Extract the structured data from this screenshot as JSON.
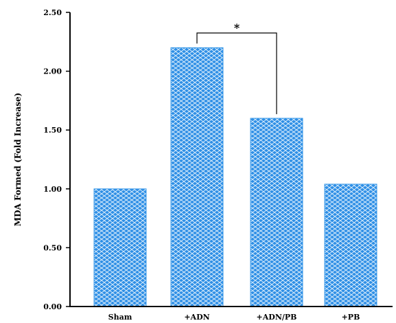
{
  "chart_data": {
    "type": "bar",
    "title": "",
    "xlabel": "",
    "ylabel": "MDA Formed (Fold Increase)",
    "categories": [
      "Sham",
      "+ADN",
      "+ADN/PB",
      "+PB"
    ],
    "values": [
      1.0,
      2.2,
      1.6,
      1.04
    ],
    "ylim": [
      0,
      2.5
    ],
    "yticks": [
      "0.00",
      "0.50",
      "1.00",
      "1.50",
      "2.00",
      "2.50"
    ],
    "grid": false,
    "legend": "none",
    "bar_color": "#3d9be9",
    "bar_pattern": "diamond-lattice",
    "annotations": [
      {
        "text": "*",
        "from": "+ADN",
        "to": "+ADN/PB"
      }
    ]
  }
}
